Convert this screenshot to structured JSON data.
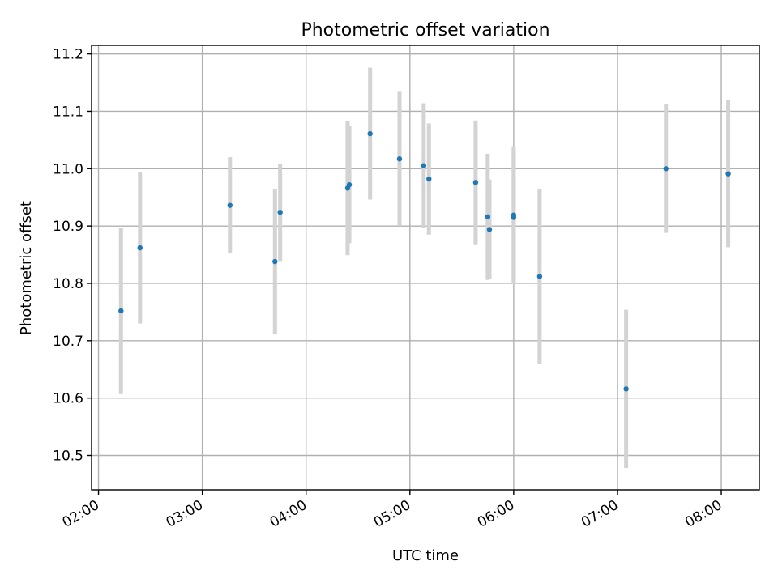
{
  "chart_data": {
    "type": "scatter",
    "title": "Photometric offset variation",
    "xlabel": "UTC time",
    "ylabel": "Photometric offset",
    "xlim": [
      "01:56",
      "08:22"
    ],
    "ylim": [
      10.44,
      11.215
    ],
    "x_ticks": [
      "02:00",
      "03:00",
      "04:00",
      "05:00",
      "06:00",
      "07:00",
      "08:00"
    ],
    "y_ticks": [
      10.5,
      10.6,
      10.7,
      10.8,
      10.9,
      11.0,
      11.1,
      11.2
    ],
    "grid": true,
    "legend": "none",
    "colors": {
      "point": "#1f77b4",
      "errorbar": "#d3d3d3"
    },
    "points": [
      {
        "x": "02:13",
        "y": 10.752,
        "yerr": 0.145
      },
      {
        "x": "02:24",
        "y": 10.862,
        "yerr": 0.132
      },
      {
        "x": "03:16",
        "y": 10.936,
        "yerr": 0.084
      },
      {
        "x": "03:42",
        "y": 10.838,
        "yerr": 0.127
      },
      {
        "x": "03:45",
        "y": 10.924,
        "yerr": 0.085
      },
      {
        "x": "04:24",
        "y": 10.966,
        "yerr": 0.117
      },
      {
        "x": "04:25",
        "y": 10.972,
        "yerr": 0.102
      },
      {
        "x": "04:37",
        "y": 11.061,
        "yerr": 0.115
      },
      {
        "x": "04:54",
        "y": 11.017,
        "yerr": 0.117
      },
      {
        "x": "05:08",
        "y": 11.005,
        "yerr": 0.109
      },
      {
        "x": "05:11",
        "y": 10.982,
        "yerr": 0.097
      },
      {
        "x": "05:38",
        "y": 10.976,
        "yerr": 0.108
      },
      {
        "x": "05:45",
        "y": 10.916,
        "yerr": 0.11
      },
      {
        "x": "05:46",
        "y": 10.894,
        "yerr": 0.087
      },
      {
        "x": "06:00",
        "y": 10.919,
        "yerr": 0.12
      },
      {
        "x": "06:00",
        "y": 10.915,
        "yerr": 0.116
      },
      {
        "x": "06:15",
        "y": 10.812,
        "yerr": 0.153
      },
      {
        "x": "07:05",
        "y": 10.616,
        "yerr": 0.138
      },
      {
        "x": "07:28",
        "y": 11.0,
        "yerr": 0.112
      },
      {
        "x": "08:04",
        "y": 10.991,
        "yerr": 0.128
      }
    ]
  }
}
